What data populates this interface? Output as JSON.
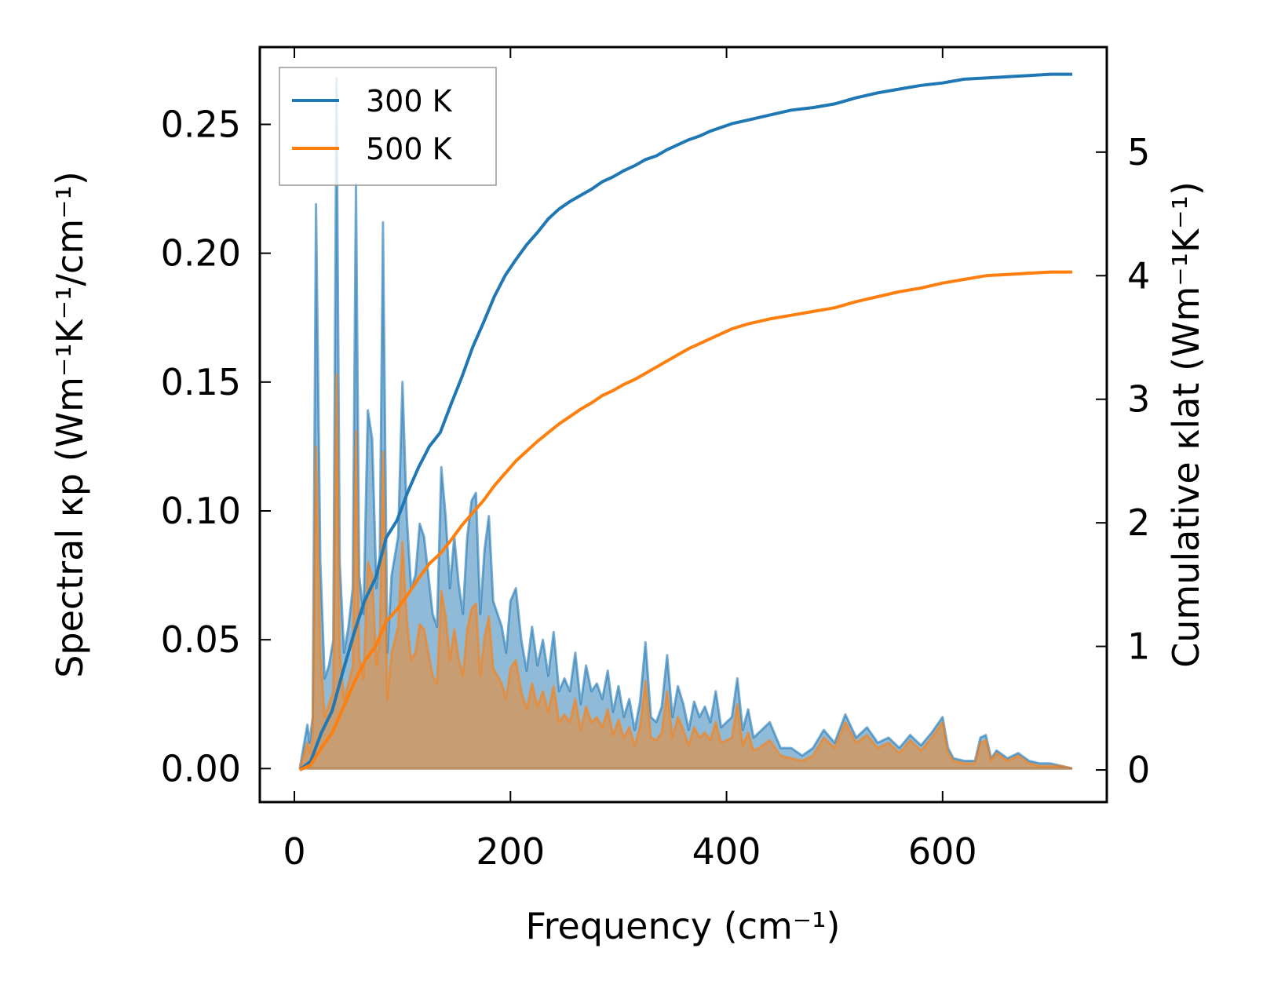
{
  "chart_data": {
    "type": "line",
    "xlabel": "Frequency (cm⁻¹)",
    "ylabel_left": "Spectral κp (Wm⁻¹K⁻¹/cm⁻¹)",
    "ylabel_right": "Cumulative κlat (Wm⁻¹K⁻¹)",
    "xlim": [
      -32,
      752
    ],
    "ylim_left": [
      -0.013,
      0.28
    ],
    "ylim_right": [
      -0.26,
      5.85
    ],
    "x_ticks": [
      0,
      200,
      400,
      600
    ],
    "y_ticks_left": [
      0.0,
      0.05,
      0.1,
      0.15,
      0.2,
      0.25
    ],
    "y_ticks_right": [
      0,
      1,
      2,
      3,
      4,
      5
    ],
    "x_tick_labels": [
      "0",
      "200",
      "400",
      "600"
    ],
    "y_tick_labels_left": [
      "0.00",
      "0.05",
      "0.10",
      "0.15",
      "0.20",
      "0.25"
    ],
    "y_tick_labels_right": [
      "0",
      "1",
      "2",
      "3",
      "4",
      "5"
    ],
    "legend_position": "top-left",
    "series": [
      {
        "name": "300 K",
        "color": "#1f77b4",
        "spectral": {
          "x": [
            5,
            12,
            14,
            17,
            20,
            24,
            28,
            32,
            36,
            39,
            42,
            46,
            50,
            54,
            57,
            60,
            64,
            68,
            72,
            76,
            79,
            82,
            86,
            90,
            96,
            100,
            104,
            108,
            112,
            116,
            120,
            124,
            128,
            132,
            136,
            140,
            144,
            148,
            152,
            156,
            160,
            164,
            168,
            172,
            176,
            180,
            184,
            188,
            192,
            196,
            200,
            205,
            210,
            215,
            220,
            225,
            230,
            235,
            240,
            245,
            250,
            255,
            260,
            265,
            270,
            275,
            280,
            285,
            290,
            295,
            300,
            305,
            310,
            315,
            320,
            325,
            330,
            335,
            340,
            345,
            350,
            355,
            360,
            365,
            370,
            375,
            380,
            385,
            390,
            395,
            400,
            405,
            410,
            415,
            420,
            425,
            430,
            440,
            450,
            460,
            470,
            480,
            490,
            500,
            510,
            520,
            530,
            540,
            550,
            560,
            570,
            580,
            590,
            600,
            605,
            610,
            620,
            630,
            635,
            640,
            645,
            650,
            660,
            670,
            680,
            690,
            700,
            710,
            720
          ],
          "y": [
            0.0,
            0.017,
            0.01,
            0.02,
            0.219,
            0.08,
            0.035,
            0.04,
            0.05,
            0.268,
            0.08,
            0.045,
            0.055,
            0.07,
            0.227,
            0.075,
            0.06,
            0.139,
            0.128,
            0.07,
            0.083,
            0.212,
            0.045,
            0.075,
            0.09,
            0.15,
            0.098,
            0.07,
            0.075,
            0.095,
            0.09,
            0.075,
            0.06,
            0.055,
            0.117,
            0.098,
            0.07,
            0.09,
            0.072,
            0.06,
            0.09,
            0.104,
            0.107,
            0.06,
            0.085,
            0.098,
            0.065,
            0.06,
            0.055,
            0.045,
            0.065,
            0.07,
            0.05,
            0.038,
            0.055,
            0.04,
            0.05,
            0.036,
            0.053,
            0.03,
            0.035,
            0.03,
            0.045,
            0.025,
            0.04,
            0.03,
            0.033,
            0.027,
            0.038,
            0.022,
            0.032,
            0.02,
            0.027,
            0.015,
            0.026,
            0.049,
            0.02,
            0.018,
            0.024,
            0.044,
            0.02,
            0.032,
            0.025,
            0.015,
            0.026,
            0.02,
            0.024,
            0.018,
            0.03,
            0.016,
            0.018,
            0.02,
            0.035,
            0.015,
            0.023,
            0.012,
            0.014,
            0.018,
            0.008,
            0.008,
            0.005,
            0.008,
            0.015,
            0.01,
            0.021,
            0.012,
            0.016,
            0.01,
            0.012,
            0.008,
            0.013,
            0.009,
            0.014,
            0.02,
            0.008,
            0.004,
            0.003,
            0.003,
            0.012,
            0.013,
            0.004,
            0.007,
            0.004,
            0.006,
            0.003,
            0.002,
            0.002,
            0.001,
            0.0
          ]
        },
        "cumulative": {
          "x": [
            5,
            15,
            25,
            35,
            45,
            55,
            65,
            75,
            85,
            95,
            105,
            115,
            125,
            135,
            145,
            155,
            165,
            175,
            185,
            195,
            205,
            215,
            225,
            235,
            245,
            255,
            265,
            275,
            285,
            295,
            305,
            315,
            325,
            335,
            345,
            355,
            365,
            375,
            385,
            395,
            405,
            420,
            440,
            460,
            480,
            500,
            520,
            540,
            560,
            580,
            600,
            620,
            640,
            660,
            680,
            700,
            720
          ],
          "y": [
            0.0,
            0.07,
            0.3,
            0.48,
            0.8,
            1.1,
            1.37,
            1.55,
            1.88,
            2.02,
            2.25,
            2.45,
            2.62,
            2.73,
            2.96,
            3.18,
            3.42,
            3.62,
            3.83,
            4.0,
            4.13,
            4.25,
            4.35,
            4.46,
            4.54,
            4.6,
            4.65,
            4.7,
            4.76,
            4.8,
            4.85,
            4.89,
            4.94,
            4.97,
            5.02,
            5.06,
            5.1,
            5.13,
            5.17,
            5.2,
            5.23,
            5.26,
            5.3,
            5.34,
            5.36,
            5.39,
            5.44,
            5.48,
            5.51,
            5.54,
            5.56,
            5.59,
            5.6,
            5.61,
            5.62,
            5.63,
            5.63
          ]
        }
      },
      {
        "name": "500 K",
        "color": "#ff7f0e",
        "spectral": {
          "x": [
            5,
            12,
            14,
            17,
            20,
            24,
            28,
            32,
            36,
            39,
            42,
            46,
            50,
            54,
            57,
            60,
            64,
            68,
            72,
            76,
            79,
            82,
            86,
            90,
            96,
            100,
            104,
            108,
            112,
            116,
            120,
            124,
            128,
            132,
            136,
            140,
            144,
            148,
            152,
            156,
            160,
            164,
            168,
            172,
            176,
            180,
            184,
            188,
            192,
            196,
            200,
            205,
            210,
            215,
            220,
            225,
            230,
            235,
            240,
            245,
            250,
            255,
            260,
            265,
            270,
            275,
            280,
            285,
            290,
            295,
            300,
            305,
            310,
            315,
            320,
            325,
            330,
            335,
            340,
            345,
            350,
            355,
            360,
            365,
            370,
            375,
            380,
            385,
            390,
            395,
            400,
            405,
            410,
            415,
            420,
            425,
            430,
            440,
            450,
            460,
            470,
            480,
            490,
            500,
            510,
            520,
            530,
            540,
            550,
            560,
            570,
            580,
            590,
            600,
            605,
            610,
            620,
            630,
            635,
            640,
            645,
            650,
            660,
            670,
            680,
            690,
            700,
            710,
            720
          ],
          "y": [
            0.0,
            0.01,
            0.006,
            0.012,
            0.125,
            0.045,
            0.02,
            0.025,
            0.03,
            0.153,
            0.045,
            0.027,
            0.033,
            0.04,
            0.131,
            0.043,
            0.035,
            0.08,
            0.075,
            0.04,
            0.05,
            0.123,
            0.027,
            0.045,
            0.055,
            0.088,
            0.058,
            0.042,
            0.045,
            0.056,
            0.054,
            0.045,
            0.036,
            0.033,
            0.069,
            0.059,
            0.042,
            0.054,
            0.043,
            0.036,
            0.054,
            0.062,
            0.064,
            0.036,
            0.051,
            0.059,
            0.039,
            0.036,
            0.033,
            0.027,
            0.039,
            0.042,
            0.03,
            0.023,
            0.033,
            0.024,
            0.03,
            0.022,
            0.032,
            0.018,
            0.021,
            0.018,
            0.027,
            0.015,
            0.024,
            0.018,
            0.02,
            0.016,
            0.023,
            0.013,
            0.019,
            0.012,
            0.016,
            0.009,
            0.016,
            0.034,
            0.012,
            0.011,
            0.014,
            0.03,
            0.012,
            0.02,
            0.015,
            0.009,
            0.016,
            0.012,
            0.014,
            0.011,
            0.018,
            0.01,
            0.011,
            0.012,
            0.025,
            0.009,
            0.014,
            0.007,
            0.008,
            0.011,
            0.005,
            0.004,
            0.003,
            0.005,
            0.012,
            0.008,
            0.018,
            0.01,
            0.013,
            0.008,
            0.01,
            0.006,
            0.011,
            0.007,
            0.012,
            0.018,
            0.006,
            0.003,
            0.002,
            0.002,
            0.01,
            0.011,
            0.003,
            0.006,
            0.003,
            0.005,
            0.002,
            0.001,
            0.001,
            0.001,
            0.0
          ]
        },
        "cumulative": {
          "x": [
            5,
            15,
            25,
            35,
            45,
            55,
            65,
            75,
            85,
            95,
            105,
            115,
            125,
            135,
            145,
            155,
            165,
            175,
            185,
            195,
            205,
            215,
            225,
            235,
            245,
            255,
            265,
            275,
            285,
            295,
            305,
            315,
            325,
            335,
            345,
            355,
            365,
            375,
            385,
            395,
            405,
            420,
            440,
            460,
            480,
            500,
            520,
            540,
            560,
            580,
            600,
            620,
            640,
            660,
            680,
            700,
            720
          ],
          "y": [
            0.0,
            0.04,
            0.18,
            0.3,
            0.5,
            0.7,
            0.88,
            1.0,
            1.2,
            1.3,
            1.42,
            1.55,
            1.67,
            1.75,
            1.86,
            1.98,
            2.08,
            2.18,
            2.3,
            2.4,
            2.5,
            2.58,
            2.66,
            2.73,
            2.8,
            2.86,
            2.92,
            2.97,
            3.03,
            3.07,
            3.12,
            3.16,
            3.21,
            3.26,
            3.31,
            3.36,
            3.41,
            3.45,
            3.49,
            3.53,
            3.57,
            3.61,
            3.65,
            3.68,
            3.71,
            3.74,
            3.79,
            3.83,
            3.87,
            3.9,
            3.94,
            3.97,
            4.0,
            4.01,
            4.02,
            4.03,
            4.03
          ]
        }
      }
    ]
  }
}
